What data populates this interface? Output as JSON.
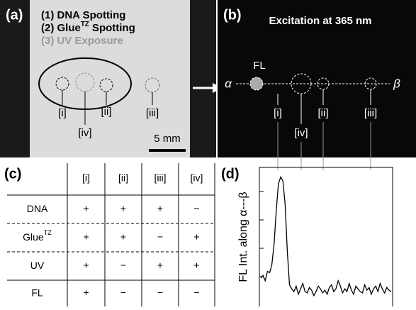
{
  "panel_a": {
    "label": "(a)",
    "steps": [
      {
        "parts": [
          "(1) DNA Spotting"
        ]
      },
      {
        "parts": [
          "(2) Glue",
          "TZ",
          " Spotting"
        ]
      },
      {
        "parts": [
          "(3) UV Exposure"
        ]
      }
    ],
    "spots": [
      "[i]",
      "[iv]",
      "[ii]",
      "[iii]"
    ],
    "scale": "5 mm"
  },
  "panel_b": {
    "label": "(b)",
    "title": "Excitation at 365 nm",
    "fl": "FL",
    "alpha": "α",
    "beta": "β",
    "spots": [
      "[i]",
      "[iv]",
      "[ii]",
      "[iii]"
    ]
  },
  "panel_c": {
    "label": "(c)",
    "header": [
      "[i]",
      "[ii]",
      "[iii]",
      "[iv]"
    ],
    "rows": [
      {
        "name": [
          "DNA"
        ],
        "cells": [
          "+",
          "+",
          "+",
          "−"
        ]
      },
      {
        "name": [
          "Glue",
          "TZ"
        ],
        "cells": [
          "+",
          "+",
          "−",
          "+"
        ]
      },
      {
        "name": [
          "UV"
        ],
        "cells": [
          "+",
          "−",
          "+",
          "+"
        ]
      },
      {
        "name": [
          "FL"
        ],
        "cells": [
          "+",
          "−",
          "−",
          "−"
        ]
      }
    ]
  },
  "chart_data": {
    "type": "line",
    "label": "(d)",
    "ylabel": "FL Int. along α---β",
    "color": "#000000",
    "ylim": [
      0,
      100
    ],
    "values": [
      20,
      22,
      18,
      25,
      24,
      30,
      45,
      70,
      90,
      95,
      92,
      75,
      40,
      15,
      12,
      10,
      14,
      8,
      12,
      16,
      10,
      9,
      13,
      11,
      7,
      10,
      14,
      12,
      9,
      11,
      8,
      13,
      15,
      10,
      12,
      18,
      14,
      9,
      12,
      10,
      16,
      11,
      8,
      14,
      12,
      10,
      9,
      15,
      11,
      13,
      8,
      12,
      14,
      10,
      16,
      12,
      9,
      13,
      11,
      10
    ]
  }
}
